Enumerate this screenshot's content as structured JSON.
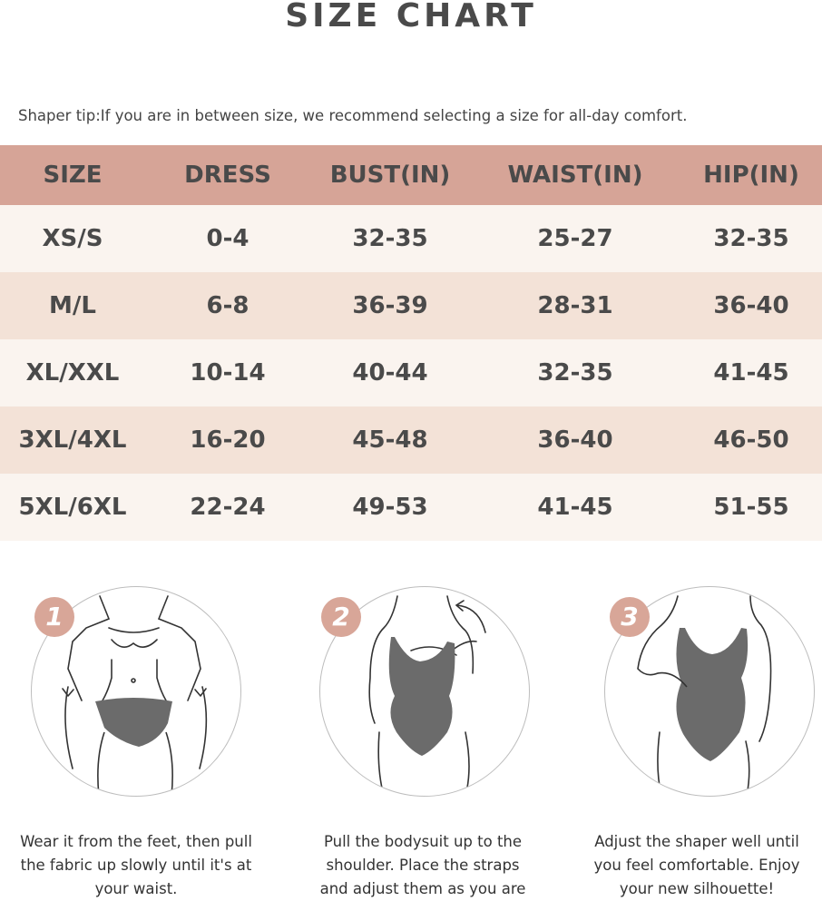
{
  "title": "SIZE CHART",
  "tip": "Shaper tip:If you are in between size, we recommend selecting a size for all-day comfort.",
  "table": {
    "headers": [
      "SIZE",
      "DRESS",
      "BUST(IN)",
      "WAIST(IN)",
      "HIP(IN)"
    ],
    "rows": [
      [
        "XS/S",
        "0-4",
        "32-35",
        "25-27",
        "32-35"
      ],
      [
        "M/L",
        "6-8",
        "36-39",
        "28-31",
        "36-40"
      ],
      [
        "XL/XXL",
        "10-14",
        "40-44",
        "32-35",
        "41-45"
      ],
      [
        "3XL/4XL",
        "16-20",
        "45-48",
        "36-40",
        "46-50"
      ],
      [
        "5XL/6XL",
        "22-24",
        "49-53",
        "41-45",
        "51-55"
      ]
    ]
  },
  "steps": [
    {
      "number": "1",
      "lines": [
        "Wear it from the feet, then pull",
        "the fabric up slowly until it's at",
        "your waist."
      ]
    },
    {
      "number": "2",
      "lines": [
        "Pull the bodysuit up to the",
        "shoulder. Place the straps",
        "and adjust them as you are"
      ]
    },
    {
      "number": "3",
      "lines": [
        "Adjust the shaper well until",
        "you feel comfortable. Enjoy",
        "your new silhouette!"
      ]
    }
  ],
  "colors": {
    "header_bg": "#d6a497",
    "row_light": "#faf4ef",
    "row_dark": "#f3e2d7",
    "badge": "#d8a698",
    "garment": "#6b6b6b"
  }
}
